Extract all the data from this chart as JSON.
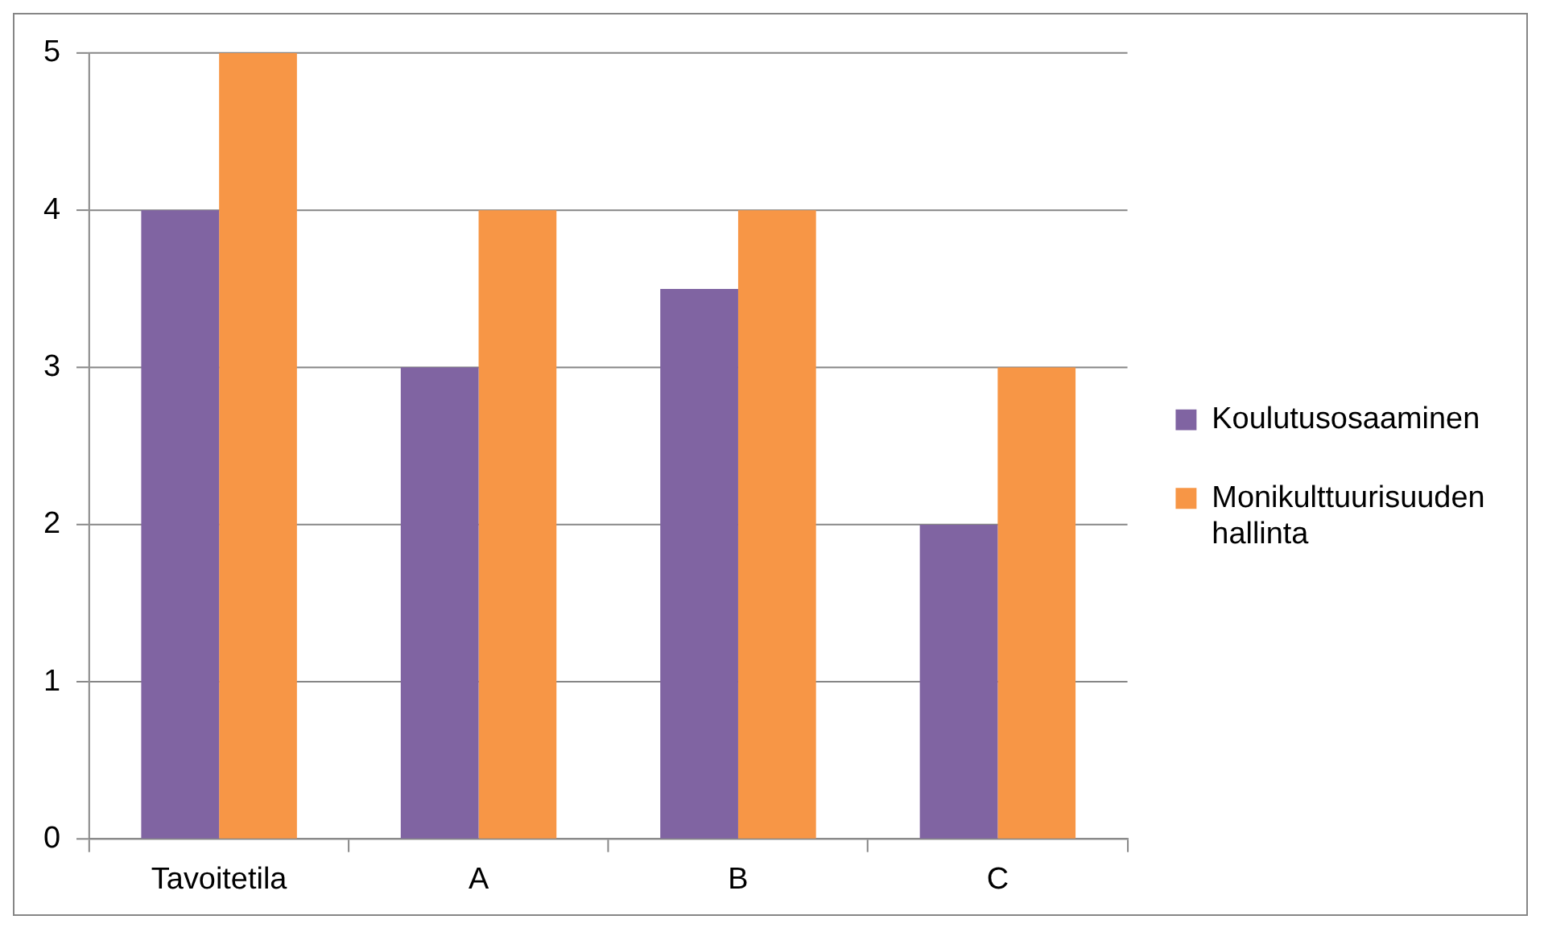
{
  "chart_data": {
    "type": "bar",
    "categories": [
      "Tavoitetila",
      "A",
      "B",
      "C"
    ],
    "series": [
      {
        "name": "Koulutusosaaminen",
        "color": "#8064a2",
        "values": [
          4,
          3,
          3.5,
          2
        ]
      },
      {
        "name": "Monikulttuurisuuden hallinta",
        "color": "#f79646",
        "values": [
          5,
          4,
          4,
          3
        ]
      }
    ],
    "ylim": [
      0,
      5
    ],
    "yticks": [
      0,
      1,
      2,
      3,
      4,
      5
    ],
    "grid": "y",
    "legend": "right"
  }
}
